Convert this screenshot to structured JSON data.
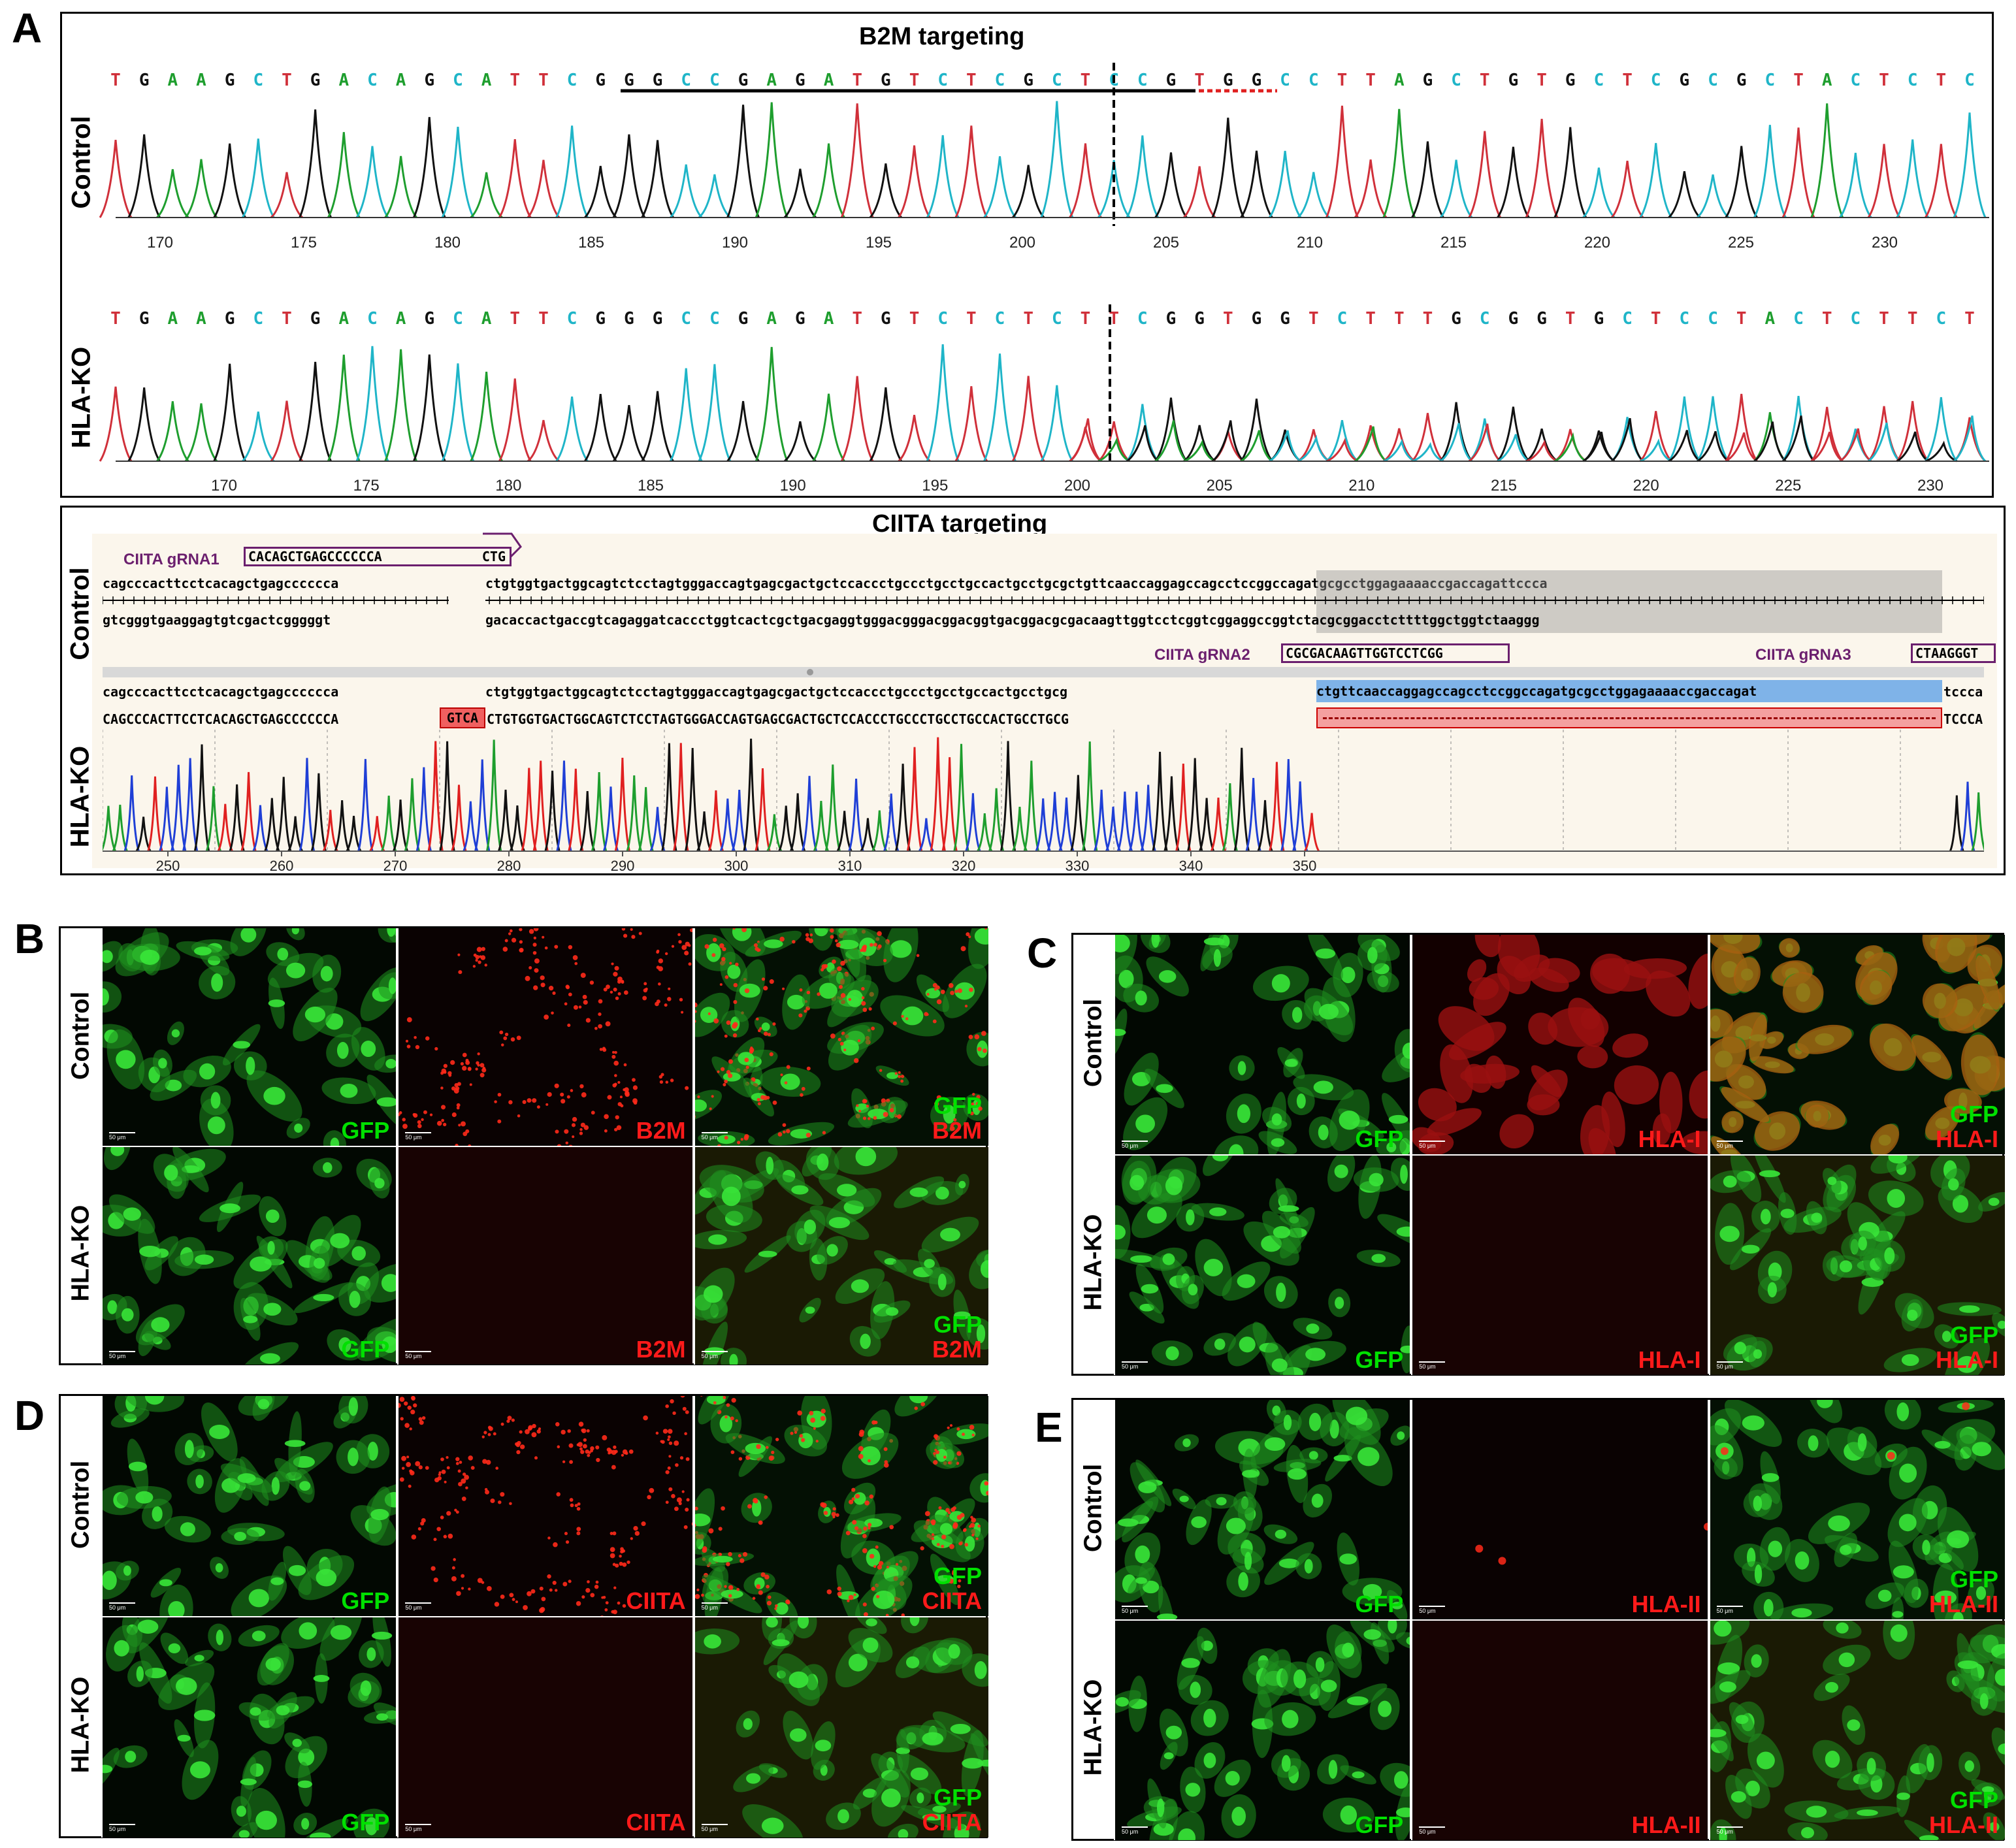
{
  "panels": {
    "A": "A",
    "B": "B",
    "C": "C",
    "D": "D",
    "E": "E"
  },
  "b2m": {
    "title": "B2M targeting",
    "control_label": "Control",
    "ko_label": "HLA-KO",
    "control_seq": "TGAAGCTGACAGCATTCGGGCCGAGATGTCTCGCTCCGTGGCCTTAGCTGTGCTCGCGCTACTCTC",
    "ko_seq": "TGAAGCTGACAGCATTCGGGCCGAGATGTCTCTCTTCGGTGGTCTTTGCGGTGCTCCTACTCTTCT",
    "control_ticks": [
      "170",
      "175",
      "180",
      "185",
      "190",
      "195",
      "200",
      "205",
      "210",
      "215",
      "220",
      "225",
      "230"
    ],
    "ko_ticks": [
      "170",
      "175",
      "180",
      "185",
      "190",
      "195",
      "200",
      "205",
      "210",
      "215",
      "220",
      "225",
      "230"
    ]
  },
  "ciita": {
    "title": "CIITA targeting",
    "control_label": "Control",
    "ko_label": "HLA-KO",
    "grna1_label": "CIITA gRNA1",
    "grna1_seq": "CACAGCTGAGCCCCCCA",
    "grna1_tail": "CTG",
    "grna2_label": "CIITA gRNA2",
    "grna2_seq": "CGCGACAAGTTGGTCCTCGG",
    "grna3_label": "CIITA gRNA3",
    "grna3_seq": "CTAAGGGT",
    "top_seq_left": "cagcccacttcctcacagctgagcccccca",
    "top_seq_right": "ctgtggtgactggcagtctcctagtgggaccagtgagcgactgctccaccctgccctgcctgccactgcctgcgctgttcaaccaggagccagcctccggccagatgcgcctggagaaaaccgaccagattccca",
    "comp_seq_left": "gtcgggtgaaggagtgtcgactcgggggt",
    "comp_seq_right": "gacaccactgaccgtcagaggatcaccctggtcactcgctgacgaggtgggacgggacggacggtgacggacgcgacaagttggtcctcggtcggaggccggtctacgcggacctcttttggctggtctaaggg",
    "ko_ref_left": "cagcccacttcctcacagctgagcccccca",
    "ko_ref_right": "ctgtggtgactggcagtctcctagtgggaccagtgagcgactgctccaccctgccctgcctgccactgcctgcg",
    "ko_ref_hl": "ctgttcaaccaggagccagcctccggccagatgcgcctggagaaaaccgaccagat",
    "ko_ref_end": "tccca",
    "ko_read_left": "CAGCCCACTTCCTCACAGCTGAGCCCCCCA",
    "ko_read_ins": "GTCA",
    "ko_read_right": "CTGTGGTGACTGGCAGTCTCCTAGTGGGACCAGTGAGCGACTGCTCCACCCTGCCCTGCCTGCCACTGCCTGCG",
    "ko_read_end": "TCCCA",
    "ticks": [
      "250",
      "260",
      "270",
      "280",
      "290",
      "300",
      "310",
      "320",
      "330",
      "340",
      "350"
    ]
  },
  "micro": {
    "B": {
      "control_label": "Control",
      "ko_label": "HLA-KO",
      "ctrl": [
        "GFP",
        "B2M",
        "GFP",
        "B2M"
      ],
      "ko": [
        "GFP",
        "B2M",
        "GFP",
        "B2M"
      ]
    },
    "C": {
      "control_label": "Control",
      "ko_label": "HLA-KO",
      "ctrl": [
        "GFP",
        "HLA-I",
        "GFP",
        "HLA-I"
      ],
      "ko": [
        "GFP",
        "HLA-I",
        "GFP",
        "HLA-I"
      ]
    },
    "D": {
      "control_label": "Control",
      "ko_label": "HLA-KO",
      "ctrl": [
        "GFP",
        "CIITA",
        "GFP",
        "CIITA"
      ],
      "ko": [
        "GFP",
        "CIITA",
        "GFP",
        "CIITA"
      ]
    },
    "E": {
      "control_label": "Control",
      "ko_label": "HLA-KO",
      "ctrl": [
        "GFP",
        "HLA-II",
        "GFP",
        "HLA-II"
      ],
      "ko": [
        "GFP",
        "HLA-II",
        "GFP",
        "HLA-II"
      ]
    },
    "scale_bar": "50 μm"
  },
  "colors": {
    "A": "#1e9e2e",
    "C": "#1fb5c8",
    "G": "#111111",
    "T": "#d0303a",
    "gfp": "#00e000",
    "red": "#ff1a1a",
    "grna": "#6b1f6e"
  }
}
